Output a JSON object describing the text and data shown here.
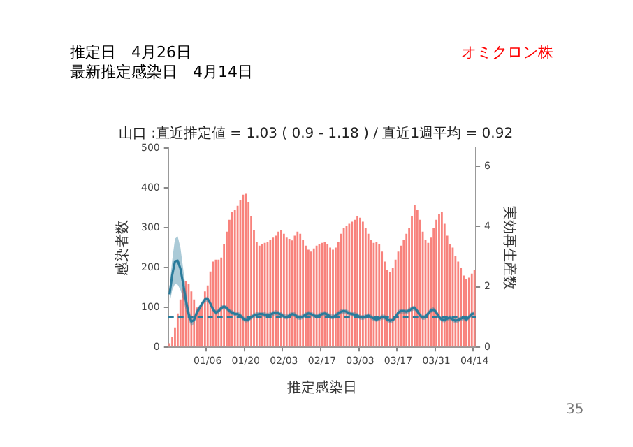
{
  "chart_data": {
    "type": "bar",
    "title": "山口 :直近推定値 = 1.03 ( 0.9 - 1.18 ) / 直近1週平均 = 0.92",
    "xlabel": "推定感染日",
    "ylabel": "感染者数",
    "y2label": "実効再生産数",
    "annotations": [
      "推定日　4月26日",
      "最新推定感染日　4月14日",
      "オミクロン株",
      "35"
    ],
    "categories": [
      null,
      null,
      null,
      null,
      null,
      null,
      null,
      null,
      null,
      null,
      null,
      null,
      null,
      null,
      "01/06",
      null,
      null,
      null,
      null,
      null,
      null,
      null,
      null,
      null,
      null,
      null,
      null,
      null,
      "01/20",
      null,
      null,
      null,
      null,
      null,
      null,
      null,
      null,
      null,
      null,
      null,
      null,
      null,
      "02/03",
      null,
      null,
      null,
      null,
      null,
      null,
      null,
      null,
      null,
      null,
      null,
      null,
      null,
      "02/17",
      null,
      null,
      null,
      null,
      null,
      null,
      null,
      null,
      null,
      null,
      null,
      null,
      null,
      "03/03",
      null,
      null,
      null,
      null,
      null,
      null,
      null,
      null,
      null,
      null,
      null,
      null,
      null,
      "03/17",
      null,
      null,
      null,
      null,
      null,
      null,
      null,
      null,
      null,
      null,
      null,
      null,
      null,
      "03/31",
      null,
      null,
      null,
      null,
      null,
      null,
      null,
      null,
      null,
      null,
      null,
      null,
      null,
      "04/14"
    ],
    "series": [
      {
        "color": "#f8827c",
        "values": [
          10,
          25,
          50,
          85,
          120,
          150,
          165,
          160,
          140,
          120,
          100,
          95,
          110,
          140,
          155,
          190,
          215,
          220,
          220,
          225,
          260,
          290,
          320,
          340,
          345,
          355,
          370,
          383,
          385,
          365,
          330,
          295,
          265,
          255,
          258,
          262,
          265,
          270,
          275,
          280,
          290,
          295,
          285,
          275,
          272,
          268,
          280,
          290,
          285,
          270,
          255,
          245,
          240,
          248,
          255,
          260,
          262,
          265,
          258,
          250,
          245,
          250,
          265,
          285,
          300,
          305,
          310,
          315,
          320,
          330,
          325,
          315,
          300,
          285,
          270,
          262,
          265,
          258,
          240,
          215,
          195,
          188,
          200,
          220,
          240,
          255,
          270,
          285,
          300,
          330,
          358,
          345,
          320,
          290,
          270,
          262,
          275,
          300,
          320,
          335,
          340,
          310,
          280,
          260,
          250,
          230,
          215,
          200,
          180,
          172,
          175,
          185,
          195
        ]
      },
      {
        "type": "line",
        "axis": "y2",
        "color": "#2a7b9b",
        "values": [
          1.75,
          2.4,
          2.85,
          2.87,
          2.6,
          2.1,
          1.55,
          1.1,
          0.85,
          0.9,
          1.15,
          1.3,
          1.45,
          1.58,
          1.6,
          1.45,
          1.25,
          1.15,
          1.2,
          1.3,
          1.35,
          1.3,
          1.2,
          1.15,
          1.1,
          1.1,
          1.05,
          0.95,
          0.9,
          0.92,
          1.0,
          1.05,
          1.08,
          1.1,
          1.1,
          1.08,
          1.05,
          1.08,
          1.12,
          1.15,
          1.12,
          1.08,
          1.02,
          1.0,
          1.05,
          1.1,
          1.08,
          1.0,
          0.98,
          1.02,
          1.08,
          1.12,
          1.1,
          1.05,
          1.02,
          1.05,
          1.1,
          1.12,
          1.08,
          1.02,
          1.0,
          1.05,
          1.12,
          1.18,
          1.2,
          1.18,
          1.12,
          1.1,
          1.08,
          1.05,
          1.0,
          0.98,
          1.02,
          1.05,
          1.0,
          0.95,
          0.92,
          0.95,
          1.0,
          1.0,
          0.92,
          0.88,
          0.9,
          1.0,
          1.15,
          1.2,
          1.2,
          1.18,
          1.22,
          1.28,
          1.3,
          1.2,
          1.05,
          0.98,
          1.0,
          1.12,
          1.22,
          1.25,
          1.15,
          1.0,
          0.92,
          0.9,
          0.95,
          0.98,
          0.92,
          0.88,
          0.9,
          0.95,
          0.98,
          0.92,
          1.0,
          1.1,
          1.12
        ],
        "lower": [
          1.45,
          1.9,
          2.1,
          2.07,
          1.9,
          1.6,
          1.2,
          0.9,
          0.7,
          0.78,
          1.03,
          1.2,
          1.36,
          1.5,
          1.52,
          1.37,
          1.17,
          1.07,
          1.12,
          1.22,
          1.27,
          1.22,
          1.12,
          1.07,
          1.02,
          1.02,
          0.97,
          0.87,
          0.82,
          0.84,
          0.92,
          0.97,
          1.0,
          1.02,
          1.02,
          1.0,
          0.97,
          1.0,
          1.04,
          1.07,
          1.04,
          1.0,
          0.94,
          0.92,
          0.97,
          1.02,
          1.0,
          0.92,
          0.9,
          0.94,
          1.0,
          1.04,
          1.02,
          0.97,
          0.94,
          0.97,
          1.02,
          1.04,
          1.0,
          0.94,
          0.92,
          0.97,
          1.04,
          1.1,
          1.12,
          1.1,
          1.04,
          1.02,
          1.0,
          0.97,
          0.92,
          0.9,
          0.94,
          0.97,
          0.92,
          0.87,
          0.84,
          0.87,
          0.92,
          0.92,
          0.84,
          0.8,
          0.82,
          0.92,
          1.07,
          1.12,
          1.12,
          1.1,
          1.14,
          1.2,
          1.22,
          1.12,
          0.97,
          0.9,
          0.92,
          1.04,
          1.14,
          1.17,
          1.07,
          0.92,
          0.84,
          0.82,
          0.87,
          0.9,
          0.84,
          0.8,
          0.82,
          0.87,
          0.9,
          0.84,
          0.92,
          1.02,
          1.04
        ],
        "upper": [
          2.05,
          2.9,
          3.6,
          3.67,
          3.3,
          2.6,
          1.9,
          1.3,
          1.0,
          1.02,
          1.27,
          1.4,
          1.54,
          1.66,
          1.68,
          1.53,
          1.33,
          1.23,
          1.28,
          1.38,
          1.43,
          1.38,
          1.28,
          1.23,
          1.18,
          1.18,
          1.13,
          1.03,
          0.98,
          1.0,
          1.08,
          1.13,
          1.16,
          1.18,
          1.18,
          1.16,
          1.13,
          1.16,
          1.2,
          1.23,
          1.2,
          1.16,
          1.1,
          1.08,
          1.13,
          1.18,
          1.16,
          1.08,
          1.06,
          1.1,
          1.16,
          1.2,
          1.18,
          1.13,
          1.1,
          1.13,
          1.18,
          1.2,
          1.16,
          1.1,
          1.08,
          1.13,
          1.2,
          1.26,
          1.28,
          1.26,
          1.2,
          1.18,
          1.16,
          1.13,
          1.08,
          1.06,
          1.1,
          1.13,
          1.08,
          1.03,
          1.0,
          1.03,
          1.08,
          1.08,
          1.0,
          0.96,
          0.98,
          1.08,
          1.23,
          1.28,
          1.28,
          1.26,
          1.3,
          1.36,
          1.38,
          1.28,
          1.13,
          1.06,
          1.08,
          1.2,
          1.3,
          1.33,
          1.23,
          1.08,
          1.0,
          0.98,
          1.03,
          1.06,
          1.0,
          0.96,
          0.98,
          1.03,
          1.06,
          1.0,
          1.08,
          1.18,
          1.2
        ]
      }
    ],
    "ylim": [
      0,
      500
    ],
    "yticks": [
      0,
      100,
      200,
      300,
      400,
      500
    ],
    "y2lim": [
      0,
      6.6
    ],
    "y2ticks": [
      0,
      2,
      4,
      6
    ],
    "ref_lines": [
      {
        "axis": "y2",
        "value": 1,
        "color": "#2a7b9b",
        "line_style": "dashed"
      }
    ],
    "grid": false,
    "legend": false
  }
}
